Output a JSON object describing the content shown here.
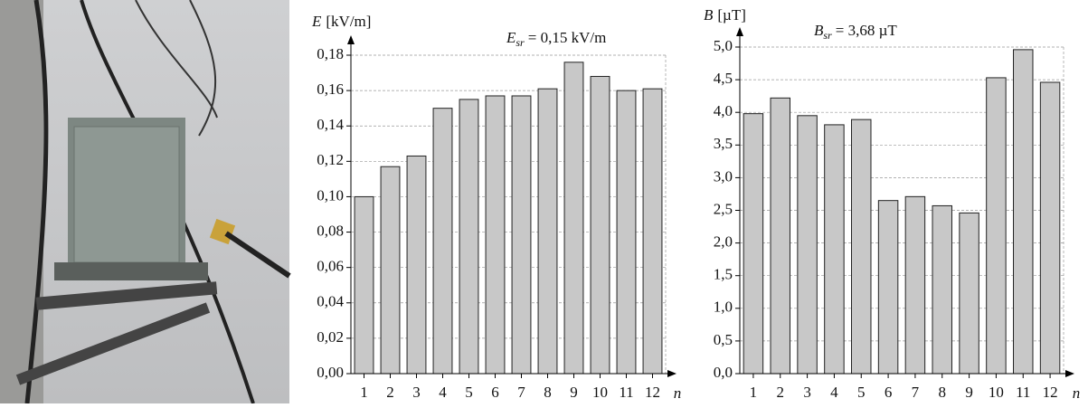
{
  "chart_data": [
    {
      "type": "bar",
      "y_label_symbol": "E",
      "y_label_unit": "[kV/m]",
      "x_label": "n",
      "annotation": {
        "symbol": "E",
        "subscript": "sr",
        "text": "= 0,15 kV/m"
      },
      "categories": [
        "1",
        "2",
        "3",
        "4",
        "5",
        "6",
        "7",
        "8",
        "9",
        "10",
        "11",
        "12"
      ],
      "values": [
        0.1,
        0.117,
        0.123,
        0.15,
        0.155,
        0.157,
        0.157,
        0.161,
        0.176,
        0.168,
        0.16,
        0.161
      ],
      "color": "#c8c8c8",
      "ylim": [
        0,
        0.18
      ],
      "yticks": [
        {
          "value": 0,
          "label": "0,00"
        },
        {
          "value": 0.02,
          "label": "0,02"
        },
        {
          "value": 0.04,
          "label": "0,04"
        },
        {
          "value": 0.06,
          "label": "0,06"
        },
        {
          "value": 0.08,
          "label": "0,08"
        },
        {
          "value": 0.1,
          "label": "0,10"
        },
        {
          "value": 0.12,
          "label": "0,12"
        },
        {
          "value": 0.14,
          "label": "0,14"
        },
        {
          "value": 0.16,
          "label": "0,16"
        },
        {
          "value": 0.18,
          "label": "0,18"
        }
      ],
      "grid": true
    },
    {
      "type": "bar",
      "y_label_symbol": "B",
      "y_label_unit": "[µT]",
      "x_label": "n",
      "annotation": {
        "symbol": "B",
        "subscript": "sr",
        "text": "= 3,68 µT"
      },
      "categories": [
        "1",
        "2",
        "3",
        "4",
        "5",
        "6",
        "7",
        "8",
        "9",
        "10",
        "11",
        "12"
      ],
      "values": [
        3.98,
        4.22,
        3.95,
        3.81,
        3.89,
        2.65,
        2.71,
        2.57,
        2.46,
        4.53,
        4.96,
        4.46
      ],
      "color": "#c8c8c8",
      "ylim": [
        0,
        5
      ],
      "yticks": [
        {
          "value": 0,
          "label": "0,0"
        },
        {
          "value": 0.5,
          "label": "0,5"
        },
        {
          "value": 1,
          "label": "1,0"
        },
        {
          "value": 1.5,
          "label": "1,5"
        },
        {
          "value": 2,
          "label": "2,0"
        },
        {
          "value": 2.5,
          "label": "2,5"
        },
        {
          "value": 3,
          "label": "3,0"
        },
        {
          "value": 3.5,
          "label": "3,5"
        },
        {
          "value": 4,
          "label": "4,0"
        },
        {
          "value": 4.5,
          "label": "4,5"
        },
        {
          "value": 5,
          "label": "5,0"
        }
      ],
      "grid": true
    }
  ]
}
